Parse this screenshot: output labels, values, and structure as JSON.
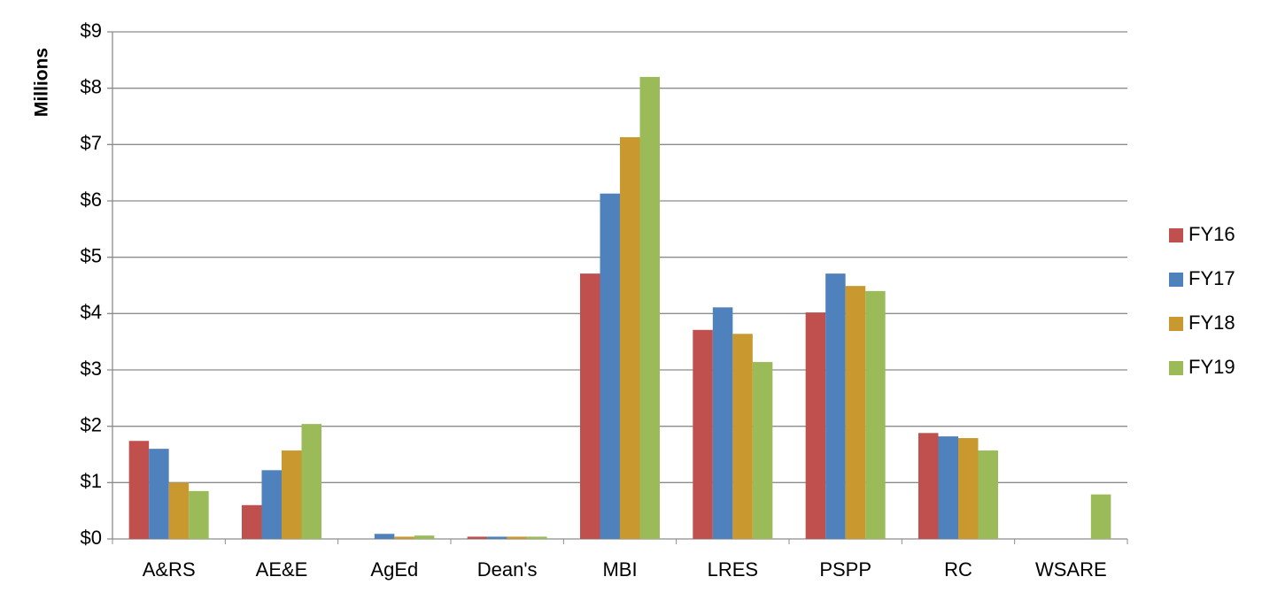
{
  "chart_data": {
    "type": "bar",
    "y_label": "Millions",
    "categories": [
      "A&RS",
      "AE&E",
      "AgEd",
      "Dean's",
      "MBI",
      "LRES",
      "PSPP",
      "RC",
      "WSARE"
    ],
    "series": [
      {
        "name": "FY16",
        "color": "#c0504d",
        "values": [
          1.74,
          0.6,
          0,
          0.04,
          4.71,
          3.71,
          4.02,
          1.88,
          0
        ]
      },
      {
        "name": "FY17",
        "color": "#4f81bd",
        "values": [
          1.6,
          1.22,
          0.09,
          0.04,
          6.13,
          4.11,
          4.71,
          1.82,
          0
        ]
      },
      {
        "name": "FY18",
        "color": "#c9992f",
        "values": [
          1.0,
          1.57,
          0.04,
          0.04,
          7.13,
          3.64,
          4.49,
          1.79,
          0
        ]
      },
      {
        "name": "FY19",
        "color": "#9bbb59",
        "values": [
          0.85,
          2.04,
          0.06,
          0.04,
          8.2,
          3.14,
          4.4,
          1.57,
          0.79
        ]
      }
    ],
    "ylim": [
      0,
      9
    ],
    "yticks": [
      {
        "value": 0,
        "label": "$0"
      },
      {
        "value": 1,
        "label": "$1"
      },
      {
        "value": 2,
        "label": "$2"
      },
      {
        "value": 3,
        "label": "$3"
      },
      {
        "value": 4,
        "label": "$4"
      },
      {
        "value": 5,
        "label": "$5"
      },
      {
        "value": 6,
        "label": "$6"
      },
      {
        "value": 7,
        "label": "$7"
      },
      {
        "value": 8,
        "label": "$8"
      },
      {
        "value": 9,
        "label": "$9"
      }
    ],
    "grid": true,
    "legend": "right"
  }
}
